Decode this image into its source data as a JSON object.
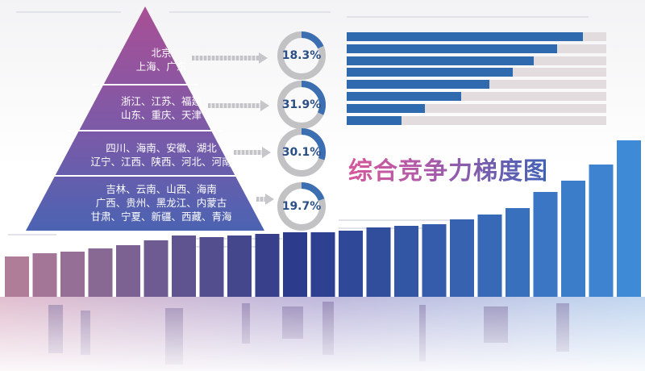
{
  "chart_data": [
    {
      "type": "pyramid",
      "title": "综合竞争力梯度图",
      "tiers": [
        {
          "lines": [
            "北京",
            "上海、广东"
          ],
          "share": "18.3%",
          "value": 18.3
        },
        {
          "lines": [
            "浙江、江苏、福建",
            "山东、重庆、天津"
          ],
          "share": "31.9%",
          "value": 31.9
        },
        {
          "lines": [
            "四川、海南、安徽、湖北",
            "辽宁、江西、陕西、河北、河南"
          ],
          "share": "30.1%",
          "value": 30.1
        },
        {
          "lines": [
            "吉林、云南、山西、海南",
            "广西、贵州、黑龙江、内蒙古",
            "甘肃、宁夏、新疆、西藏、青海"
          ],
          "share": "19.7%",
          "value": 19.7
        }
      ]
    },
    {
      "type": "bar",
      "orientation": "horizontal",
      "xlim": [
        0,
        1
      ],
      "values": [
        0.91,
        0.81,
        0.72,
        0.64,
        0.55,
        0.44,
        0.3,
        0.21
      ]
    },
    {
      "type": "bar",
      "orientation": "vertical",
      "ylim": [
        0,
        1
      ],
      "values": [
        0.25,
        0.27,
        0.28,
        0.3,
        0.32,
        0.35,
        0.38,
        0.37,
        0.38,
        0.39,
        0.4,
        0.4,
        0.41,
        0.43,
        0.44,
        0.45,
        0.48,
        0.51,
        0.55,
        0.65,
        0.72,
        0.82,
        0.97
      ]
    }
  ],
  "colors": {
    "pyramid_top": "#a94f95",
    "pyramid_bottom": "#4b63b2",
    "donut_ring": "#c2c2c5",
    "donut_arc": "#3b6fb1",
    "hbar_fill": "#2f6aae",
    "hbar_track": "#e3dcdf",
    "title_left": "#d6589b",
    "title_right": "#3f61b6",
    "skyline_left": "#b07d99",
    "skyline_mid": "#2c3a8a",
    "skyline_right": "#3f8ad6"
  }
}
